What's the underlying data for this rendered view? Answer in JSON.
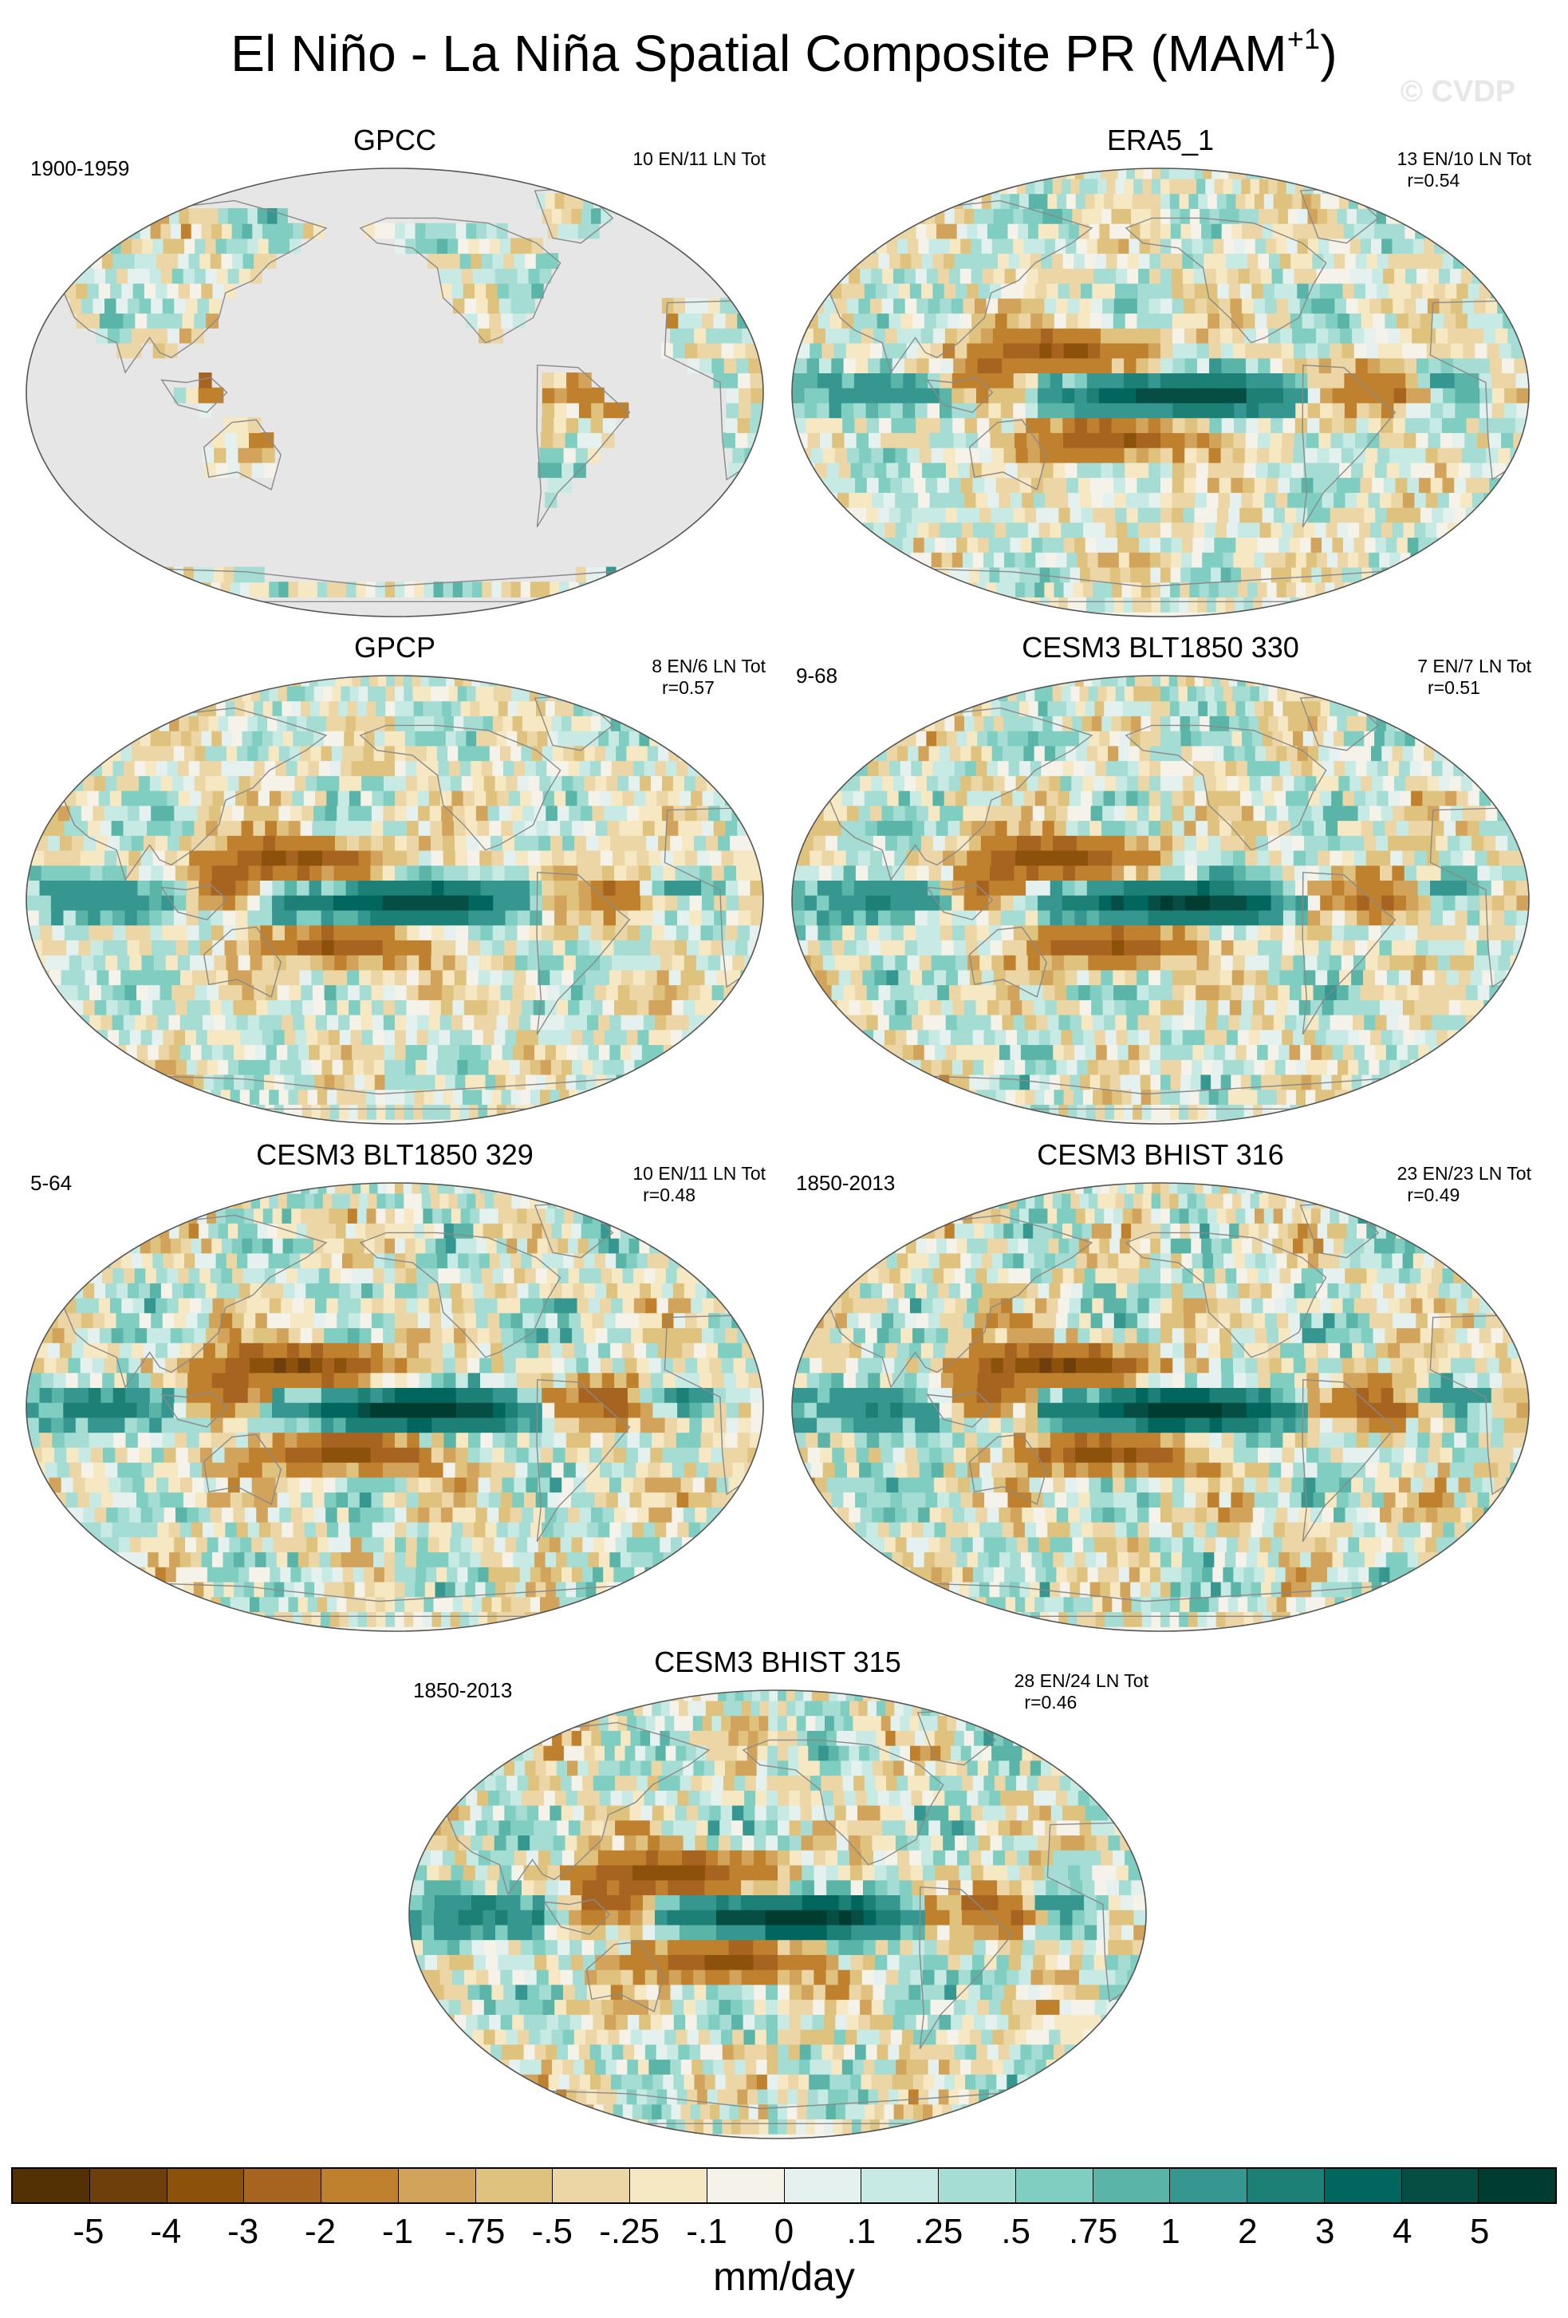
{
  "title": "El Niño - La Niña Spatial Composite PR (MAM",
  "title_sup": "+1",
  "title_end": ")",
  "watermark": "© CVDP",
  "colors": {
    "land_missing": "#e6e6e6",
    "coast": "#8a8a8a",
    "dry_strong": "#8c510a",
    "wet_strong": "#01665e"
  },
  "panels": [
    {
      "title": "GPCC",
      "period": "1900-1959",
      "counts": "10 EN/11 LN Tot",
      "r": "",
      "land_only": true
    },
    {
      "title": "ERA5_1",
      "period": "",
      "counts": "13 EN/10 LN Tot",
      "r": "r=0.54",
      "land_only": false
    },
    {
      "title": "GPCP",
      "period": "",
      "counts": "8 EN/6 LN Tot",
      "r": "r=0.57",
      "land_only": false
    },
    {
      "title": "CESM3 BLT1850 330",
      "period": "9-68",
      "counts": "7 EN/7 LN Tot",
      "r": "r=0.51",
      "land_only": false
    },
    {
      "title": "CESM3 BLT1850 329",
      "period": "5-64",
      "counts": "10 EN/11 LN Tot",
      "r": "r=0.48",
      "land_only": false
    },
    {
      "title": "CESM3 BHIST 316",
      "period": "1850-2013",
      "counts": "23 EN/23 LN Tot",
      "r": "r=0.49",
      "land_only": false
    },
    {
      "title": "CESM3 BHIST 315",
      "period": "1850-2013",
      "counts": "28 EN/24 LN Tot",
      "r": "r=0.46",
      "land_only": false
    }
  ],
  "colorbar": {
    "units": "mm/day",
    "labels": [
      "-5",
      "-4",
      "-3",
      "-2",
      "-1",
      "-.75",
      "-.5",
      "-.25",
      "-.1",
      "0",
      ".1",
      ".25",
      ".5",
      ".75",
      "1",
      "2",
      "3",
      "4",
      "5"
    ],
    "colors": [
      "#543005",
      "#6e3f0b",
      "#8c510a",
      "#a76420",
      "#bf812d",
      "#d2a45b",
      "#dfc27d",
      "#ecd6a6",
      "#f6e8c3",
      "#f5f2ea",
      "#e4f1ee",
      "#c7eae5",
      "#a5dcd3",
      "#80cdc1",
      "#5ab4a8",
      "#35978f",
      "#1c8077",
      "#01665e",
      "#064e44",
      "#003c30"
    ]
  }
}
